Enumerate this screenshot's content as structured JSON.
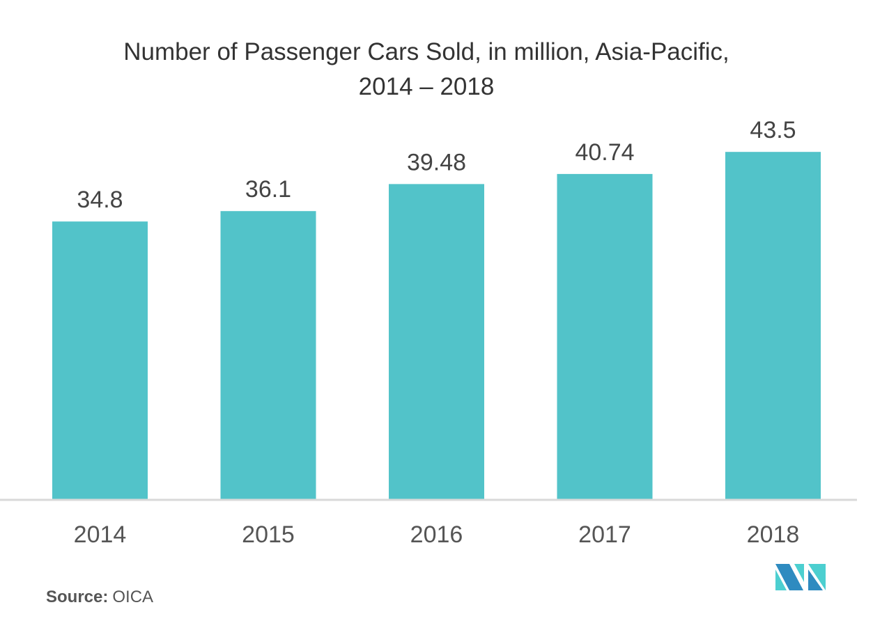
{
  "chart_data": {
    "type": "bar",
    "title": "Number of Passenger Cars Sold, in million, Asia-Pacific,",
    "subtitle": "2014 – 2018",
    "categories": [
      "2014",
      "2015",
      "2016",
      "2017",
      "2018"
    ],
    "values": [
      34.8,
      36.1,
      39.48,
      40.74,
      43.5
    ],
    "value_labels": [
      "34.8",
      "36.1",
      "39.48",
      "40.74",
      "43.5"
    ],
    "xlabel": "",
    "ylabel": "",
    "ylim": [
      0,
      45
    ],
    "grid": false,
    "legend": "none",
    "bar_color": "#52C3C9"
  },
  "source": {
    "label": "Source:",
    "value": "OICA"
  },
  "colors": {
    "logo_dark": "#2E8BC0",
    "logo_light": "#4CCFD0",
    "axis": "#d9d9d9"
  }
}
